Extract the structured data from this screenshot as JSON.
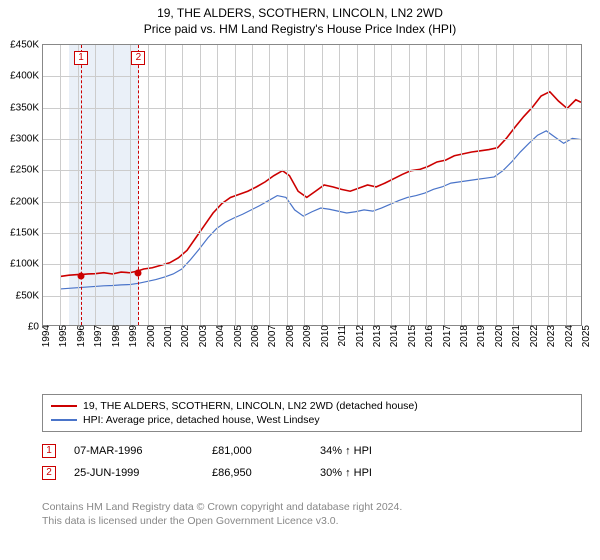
{
  "title": "19, THE ALDERS, SCOTHERN, LINCOLN, LN2 2WD",
  "subtitle": "Price paid vs. HM Land Registry's House Price Index (HPI)",
  "chart": {
    "type": "line",
    "background_color": "#ffffff",
    "grid_color": "#cccccc",
    "border_color": "#888888",
    "x": {
      "min": 1994,
      "max": 2025,
      "ticks": [
        1994,
        1995,
        1996,
        1997,
        1998,
        1999,
        2000,
        2001,
        2002,
        2003,
        2004,
        2005,
        2006,
        2007,
        2008,
        2009,
        2010,
        2011,
        2012,
        2013,
        2014,
        2015,
        2016,
        2017,
        2018,
        2019,
        2020,
        2021,
        2022,
        2023,
        2024,
        2025
      ]
    },
    "y": {
      "min": 0,
      "max": 450000,
      "tick_step": 50000,
      "labels": [
        "£0",
        "£50K",
        "£100K",
        "£150K",
        "£200K",
        "£250K",
        "£300K",
        "£350K",
        "£400K",
        "£450K"
      ]
    },
    "band": {
      "from": 1995.5,
      "to": 1999.5,
      "color": "#eaf0f8"
    },
    "event_lines": [
      {
        "x": 1996.18,
        "marker": "1",
        "line_color": "#cc0000"
      },
      {
        "x": 1999.48,
        "marker": "2",
        "line_color": "#cc0000"
      }
    ],
    "series": [
      {
        "name": "19, THE ALDERS, SCOTHERN, LINCOLN, LN2 2WD (detached house)",
        "color": "#cc0000",
        "line_width": 1.6,
        "points": [
          [
            1995.0,
            78000
          ],
          [
            1995.5,
            80000
          ],
          [
            1996.0,
            81000
          ],
          [
            1996.18,
            81000
          ],
          [
            1996.6,
            82000
          ],
          [
            1997.0,
            82500
          ],
          [
            1997.5,
            84000
          ],
          [
            1998.0,
            82000
          ],
          [
            1998.5,
            85000
          ],
          [
            1999.0,
            84000
          ],
          [
            1999.48,
            86950
          ],
          [
            1999.8,
            90000
          ],
          [
            2000.3,
            92000
          ],
          [
            2000.8,
            96000
          ],
          [
            2001.3,
            100000
          ],
          [
            2001.8,
            108000
          ],
          [
            2002.3,
            120000
          ],
          [
            2002.8,
            140000
          ],
          [
            2003.3,
            160000
          ],
          [
            2003.8,
            180000
          ],
          [
            2004.3,
            195000
          ],
          [
            2004.8,
            205000
          ],
          [
            2005.3,
            210000
          ],
          [
            2005.8,
            215000
          ],
          [
            2006.3,
            222000
          ],
          [
            2006.8,
            230000
          ],
          [
            2007.3,
            240000
          ],
          [
            2007.8,
            248000
          ],
          [
            2008.2,
            240000
          ],
          [
            2008.7,
            215000
          ],
          [
            2009.2,
            205000
          ],
          [
            2009.7,
            215000
          ],
          [
            2010.2,
            225000
          ],
          [
            2010.7,
            222000
          ],
          [
            2011.2,
            218000
          ],
          [
            2011.7,
            215000
          ],
          [
            2012.2,
            220000
          ],
          [
            2012.7,
            225000
          ],
          [
            2013.2,
            222000
          ],
          [
            2013.7,
            228000
          ],
          [
            2014.2,
            235000
          ],
          [
            2014.7,
            242000
          ],
          [
            2015.2,
            248000
          ],
          [
            2015.7,
            250000
          ],
          [
            2016.2,
            255000
          ],
          [
            2016.7,
            262000
          ],
          [
            2017.2,
            265000
          ],
          [
            2017.7,
            272000
          ],
          [
            2018.2,
            275000
          ],
          [
            2018.7,
            278000
          ],
          [
            2019.2,
            280000
          ],
          [
            2019.7,
            282000
          ],
          [
            2020.2,
            285000
          ],
          [
            2020.7,
            300000
          ],
          [
            2021.2,
            318000
          ],
          [
            2021.7,
            335000
          ],
          [
            2022.2,
            350000
          ],
          [
            2022.7,
            368000
          ],
          [
            2023.2,
            375000
          ],
          [
            2023.7,
            360000
          ],
          [
            2024.2,
            348000
          ],
          [
            2024.7,
            362000
          ],
          [
            2025.0,
            358000
          ]
        ],
        "markers": [
          {
            "x": 1996.18,
            "y": 81000
          },
          {
            "x": 1999.48,
            "y": 86950
          }
        ]
      },
      {
        "name": "HPI: Average price, detached house, West Lindsey",
        "color": "#4a74c9",
        "line_width": 1.2,
        "points": [
          [
            1995.0,
            58000
          ],
          [
            1995.5,
            59000
          ],
          [
            1996.0,
            60000
          ],
          [
            1996.5,
            61000
          ],
          [
            1997.0,
            62000
          ],
          [
            1997.5,
            63000
          ],
          [
            1998.0,
            63500
          ],
          [
            1998.5,
            64500
          ],
          [
            1999.0,
            65000
          ],
          [
            1999.5,
            67000
          ],
          [
            2000.0,
            70000
          ],
          [
            2000.5,
            73000
          ],
          [
            2001.0,
            77000
          ],
          [
            2001.5,
            82000
          ],
          [
            2002.0,
            90000
          ],
          [
            2002.5,
            105000
          ],
          [
            2003.0,
            122000
          ],
          [
            2003.5,
            140000
          ],
          [
            2004.0,
            155000
          ],
          [
            2004.5,
            165000
          ],
          [
            2005.0,
            172000
          ],
          [
            2005.5,
            178000
          ],
          [
            2006.0,
            185000
          ],
          [
            2006.5,
            192000
          ],
          [
            2007.0,
            200000
          ],
          [
            2007.5,
            208000
          ],
          [
            2008.0,
            205000
          ],
          [
            2008.5,
            185000
          ],
          [
            2009.0,
            175000
          ],
          [
            2009.5,
            182000
          ],
          [
            2010.0,
            188000
          ],
          [
            2010.5,
            186000
          ],
          [
            2011.0,
            183000
          ],
          [
            2011.5,
            180000
          ],
          [
            2012.0,
            182000
          ],
          [
            2012.5,
            185000
          ],
          [
            2013.0,
            183000
          ],
          [
            2013.5,
            188000
          ],
          [
            2014.0,
            194000
          ],
          [
            2014.5,
            200000
          ],
          [
            2015.0,
            205000
          ],
          [
            2015.5,
            208000
          ],
          [
            2016.0,
            212000
          ],
          [
            2016.5,
            218000
          ],
          [
            2017.0,
            222000
          ],
          [
            2017.5,
            228000
          ],
          [
            2018.0,
            230000
          ],
          [
            2018.5,
            232000
          ],
          [
            2019.0,
            234000
          ],
          [
            2019.5,
            236000
          ],
          [
            2020.0,
            238000
          ],
          [
            2020.5,
            248000
          ],
          [
            2021.0,
            262000
          ],
          [
            2021.5,
            278000
          ],
          [
            2022.0,
            292000
          ],
          [
            2022.5,
            305000
          ],
          [
            2023.0,
            312000
          ],
          [
            2023.5,
            302000
          ],
          [
            2024.0,
            292000
          ],
          [
            2024.5,
            300000
          ],
          [
            2025.0,
            298000
          ]
        ]
      }
    ]
  },
  "legend": {
    "items": [
      {
        "color": "#cc0000",
        "label": "19, THE ALDERS, SCOTHERN, LINCOLN, LN2 2WD (detached house)"
      },
      {
        "color": "#4a74c9",
        "label": "HPI: Average price, detached house, West Lindsey"
      }
    ]
  },
  "transactions": [
    {
      "n": "1",
      "date": "07-MAR-1996",
      "price": "£81,000",
      "pct": "34% ↑ HPI"
    },
    {
      "n": "2",
      "date": "25-JUN-1999",
      "price": "£86,950",
      "pct": "30% ↑ HPI"
    }
  ],
  "footer": {
    "line1": "Contains HM Land Registry data © Crown copyright and database right 2024.",
    "line2": "This data is licensed under the Open Government Licence v3.0."
  }
}
